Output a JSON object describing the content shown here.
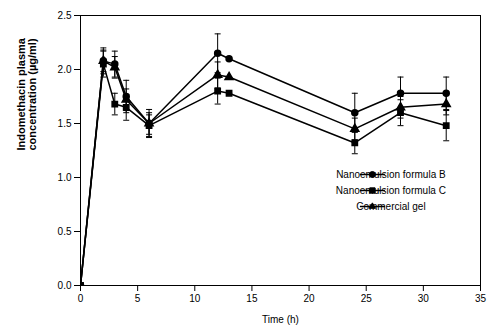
{
  "chart_data": {
    "type": "line",
    "xlabel": "Time (h)",
    "ylabel": "Indomethacin plasma\nconcentration (µg/ml)",
    "x": [
      0,
      2,
      3,
      4,
      6,
      12,
      13,
      24,
      28,
      32
    ],
    "series": [
      {
        "name": "Nanoemulsion formula B",
        "color": "#000000",
        "marker": "circle",
        "values": [
          0.0,
          2.08,
          2.05,
          1.75,
          1.5,
          2.15,
          2.1,
          1.6,
          1.78,
          1.78
        ],
        "errors": [
          0.0,
          0.12,
          0.12,
          0.15,
          0.13,
          0.18,
          0.0,
          0.18,
          0.15,
          0.15
        ]
      },
      {
        "name": "Nanoemulsion formula C",
        "color": "#000000",
        "marker": "square",
        "values": [
          0.0,
          2.05,
          1.68,
          1.65,
          1.48,
          1.8,
          1.78,
          1.32,
          1.6,
          1.48
        ],
        "errors": [
          0.0,
          0.12,
          0.1,
          0.12,
          0.1,
          0.12,
          0.0,
          0.1,
          0.12,
          0.14
        ]
      },
      {
        "name": "Commercial gel",
        "color": "#000000",
        "marker": "triangle",
        "values": [
          0.0,
          2.08,
          2.02,
          1.72,
          1.5,
          1.95,
          1.93,
          1.45,
          1.65,
          1.68
        ],
        "errors": [
          0.0,
          0.1,
          0.1,
          0.1,
          0.1,
          0.12,
          0.0,
          0.1,
          0.1,
          0.1
        ]
      }
    ],
    "xlim": [
      0,
      35
    ],
    "ylim": [
      0,
      2.5
    ],
    "xticks": [
      0,
      5,
      10,
      15,
      20,
      25,
      30,
      35
    ],
    "yticks": [
      {
        "value": 0,
        "label": "0.0"
      },
      0.5,
      {
        "value": 1.0,
        "label": "1.0"
      },
      1.5,
      {
        "value": 2.0,
        "label": "2.0"
      },
      2.5
    ],
    "grid": false,
    "legend": "right"
  }
}
